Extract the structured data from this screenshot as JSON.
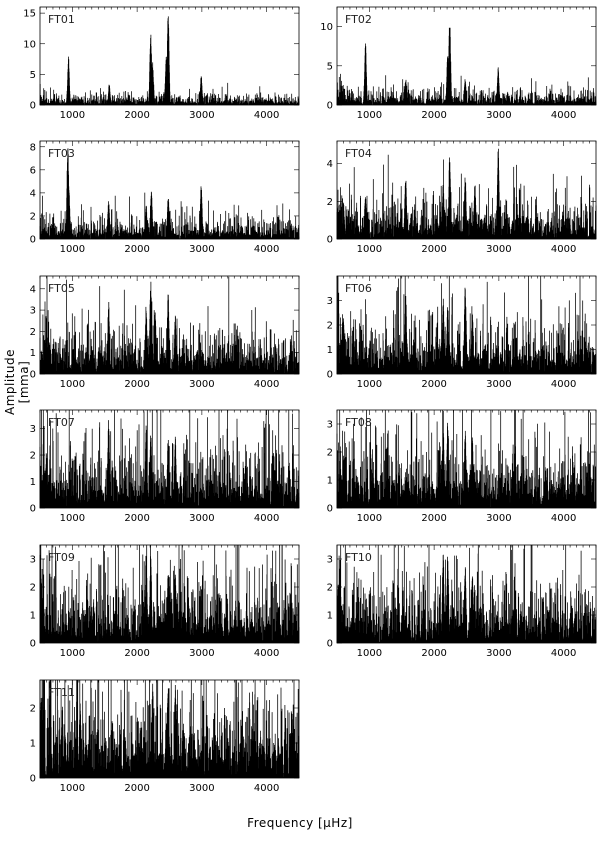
{
  "figure": {
    "ylabel": "Amplitude [mma]",
    "xlabel": "Frequency [μHz]"
  },
  "chart_data": [
    {
      "type": "line",
      "label": "FT01",
      "xlim": [
        500,
        4500
      ],
      "ylim": [
        0,
        16
      ],
      "yticks": [
        0,
        5,
        10,
        15
      ],
      "xticks": [
        1000,
        2000,
        3000,
        4000
      ],
      "noise": 0.6,
      "peaks": [
        [
          940,
          8.0
        ],
        [
          1570,
          3.5
        ],
        [
          2210,
          11.8
        ],
        [
          2240,
          7.0
        ],
        [
          2480,
          15.2
        ],
        [
          2450,
          8.0
        ],
        [
          2990,
          5.0
        ]
      ]
    },
    {
      "type": "line",
      "label": "FT02",
      "xlim": [
        500,
        4500
      ],
      "ylim": [
        0,
        12.5
      ],
      "yticks": [
        0,
        5,
        10
      ],
      "xticks": [
        1000,
        2000,
        3000,
        4000
      ],
      "noise": 0.7,
      "peaks": [
        [
          940,
          8.0
        ],
        [
          1560,
          3.5
        ],
        [
          2240,
          11.5
        ],
        [
          2210,
          6.5
        ],
        [
          2480,
          3.5
        ],
        [
          2990,
          4.8
        ]
      ]
    },
    {
      "type": "line",
      "label": "FT03",
      "xlim": [
        500,
        4500
      ],
      "ylim": [
        0,
        8.5
      ],
      "yticks": [
        0,
        2,
        4,
        6,
        8
      ],
      "xticks": [
        1000,
        2000,
        3000,
        4000
      ],
      "noise": 0.65,
      "peaks": [
        [
          930,
          8.0
        ],
        [
          945,
          5.0
        ],
        [
          1560,
          3.5
        ],
        [
          2140,
          3.0
        ],
        [
          2220,
          4.3
        ],
        [
          2480,
          3.8
        ],
        [
          2990,
          5.0
        ],
        [
          2500,
          2.5
        ]
      ]
    },
    {
      "type": "line",
      "label": "FT04",
      "xlim": [
        500,
        4500
      ],
      "ylim": [
        0,
        5.2
      ],
      "yticks": [
        0,
        2,
        4
      ],
      "xticks": [
        1000,
        2000,
        3000,
        4000
      ],
      "noise": 0.75,
      "peaks": [
        [
          940,
          2.5
        ],
        [
          1560,
          3.5
        ],
        [
          2140,
          3.0
        ],
        [
          2240,
          4.5
        ],
        [
          2480,
          3.5
        ],
        [
          2630,
          3.0
        ],
        [
          2990,
          5.0
        ],
        [
          600,
          2.0
        ]
      ]
    },
    {
      "type": "line",
      "label": "FT05",
      "xlim": [
        500,
        4500
      ],
      "ylim": [
        0,
        4.6
      ],
      "yticks": [
        0,
        1,
        2,
        3,
        4
      ],
      "xticks": [
        1000,
        2000,
        3000,
        4000
      ],
      "noise": 0.8,
      "peaks": [
        [
          1560,
          3.5
        ],
        [
          2140,
          3.2
        ],
        [
          2210,
          4.4
        ],
        [
          2280,
          3.0
        ],
        [
          2480,
          3.8
        ],
        [
          2590,
          2.8
        ],
        [
          600,
          2.5
        ]
      ]
    },
    {
      "type": "line",
      "label": "FT06",
      "xlim": [
        500,
        4500
      ],
      "ylim": [
        0,
        4.0
      ],
      "yticks": [
        0,
        1,
        2,
        3
      ],
      "xticks": [
        1000,
        2000,
        3000,
        4000
      ],
      "noise": 0.8,
      "peaks": [
        [
          1560,
          3.5
        ],
        [
          2140,
          3.2
        ],
        [
          2210,
          2.8
        ],
        [
          2480,
          3.6
        ],
        [
          2590,
          2.8
        ],
        [
          600,
          2.3
        ]
      ]
    },
    {
      "type": "line",
      "label": "FT07",
      "xlim": [
        500,
        4500
      ],
      "ylim": [
        0,
        3.7
      ],
      "yticks": [
        0,
        1,
        2,
        3
      ],
      "xticks": [
        1000,
        2000,
        3000,
        4000
      ],
      "noise": 0.85,
      "peaks": [
        [
          1560,
          3.5
        ],
        [
          2140,
          3.2
        ],
        [
          2210,
          3.0
        ],
        [
          2480,
          2.7
        ],
        [
          2590,
          2.7
        ],
        [
          600,
          2.2
        ]
      ]
    },
    {
      "type": "line",
      "label": "FT08",
      "xlim": [
        500,
        4500
      ],
      "ylim": [
        0,
        3.5
      ],
      "yticks": [
        0,
        1,
        2,
        3
      ],
      "xticks": [
        1000,
        2000,
        3000,
        4000
      ],
      "noise": 0.85,
      "peaks": [
        [
          2140,
          3.3
        ],
        [
          2210,
          3.1
        ],
        [
          2480,
          2.8
        ],
        [
          2590,
          2.6
        ],
        [
          600,
          2.0
        ]
      ]
    },
    {
      "type": "line",
      "label": "FT09",
      "xlim": [
        500,
        4500
      ],
      "ylim": [
        0,
        3.5
      ],
      "yticks": [
        0,
        1,
        2,
        3
      ],
      "xticks": [
        1000,
        2000,
        3000,
        4000
      ],
      "noise": 0.85,
      "peaks": [
        [
          2140,
          3.3
        ],
        [
          2210,
          3.1
        ],
        [
          2480,
          2.8
        ],
        [
          2590,
          2.6
        ],
        [
          520,
          2.4
        ]
      ]
    },
    {
      "type": "line",
      "label": "FT10",
      "xlim": [
        500,
        4500
      ],
      "ylim": [
        0,
        3.5
      ],
      "yticks": [
        0,
        1,
        2,
        3
      ],
      "xticks": [
        1000,
        2000,
        3000,
        4000
      ],
      "noise": 0.85,
      "peaks": [
        [
          2140,
          3.3
        ],
        [
          2210,
          3.1
        ],
        [
          2480,
          2.8
        ],
        [
          2590,
          2.6
        ],
        [
          520,
          2.2
        ]
      ]
    },
    {
      "type": "line",
      "label": "FT11",
      "xlim": [
        500,
        4500
      ],
      "ylim": [
        0,
        2.8
      ],
      "yticks": [
        0,
        1,
        2
      ],
      "xticks": [
        1000,
        2000,
        3000,
        4000
      ],
      "noise": 0.85,
      "peaks": [
        [
          2240,
          2.7
        ],
        [
          2480,
          2.8
        ],
        [
          2590,
          2.7
        ],
        [
          1120,
          2.3
        ],
        [
          520,
          2.3
        ]
      ]
    }
  ]
}
